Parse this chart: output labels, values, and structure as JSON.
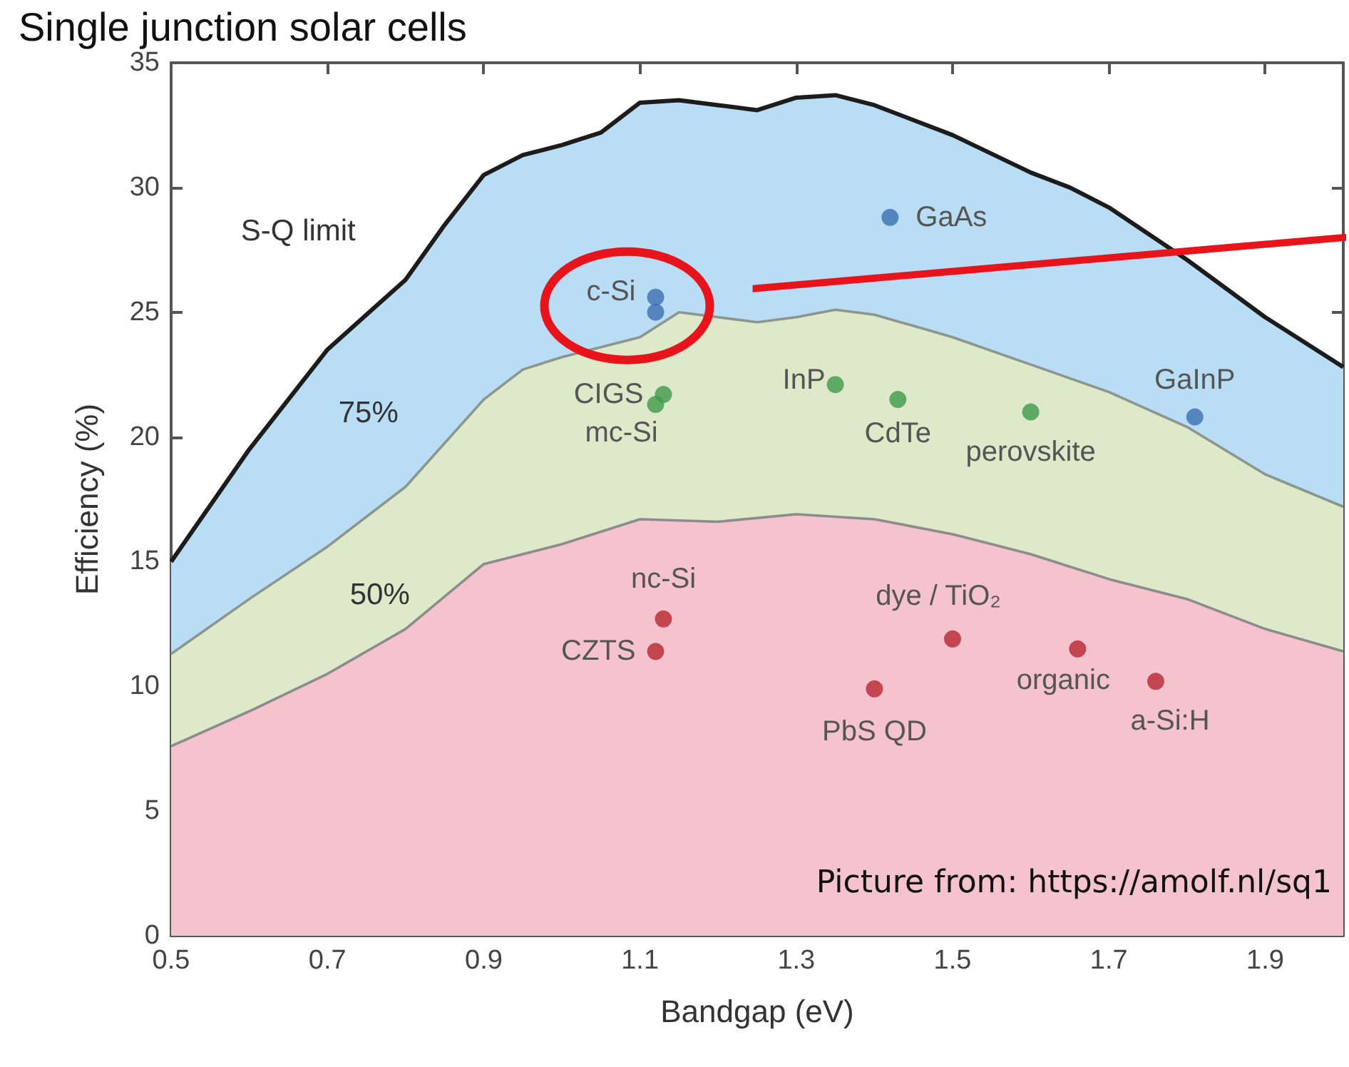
{
  "chart_data": {
    "type": "area",
    "title": "Single junction solar cells",
    "xlabel": "Bandgap (eV)",
    "ylabel": "Efficiency (%)",
    "xlim": [
      0.5,
      2.0
    ],
    "xticks": [
      0.5,
      0.7,
      0.9,
      1.1,
      1.3,
      1.5,
      1.7,
      1.9
    ],
    "ylim": [
      0,
      35
    ],
    "yticks": [
      0,
      5,
      10,
      15,
      20,
      25,
      30,
      35
    ],
    "grid": false,
    "series": [
      {
        "name": "S-Q limit",
        "type": "area",
        "color": "#b9ddf4",
        "x": [
          0.5,
          0.6,
          0.7,
          0.8,
          0.85,
          0.9,
          0.95,
          1.0,
          1.05,
          1.1,
          1.15,
          1.2,
          1.25,
          1.3,
          1.35,
          1.4,
          1.5,
          1.6,
          1.65,
          1.7,
          1.8,
          1.9,
          2.0
        ],
        "values": [
          15,
          19.5,
          23.5,
          26.3,
          28.5,
          30.5,
          31.3,
          31.7,
          32.2,
          33.4,
          33.5,
          33.3,
          33.1,
          33.6,
          33.7,
          33.3,
          32.1,
          30.6,
          30.0,
          29.2,
          27.1,
          24.8,
          22.8
        ]
      },
      {
        "name": "75%",
        "color": "#dde9c9",
        "x": [
          0.5,
          0.6,
          0.7,
          0.8,
          0.9,
          0.95,
          1.0,
          1.1,
          1.15,
          1.2,
          1.25,
          1.3,
          1.35,
          1.4,
          1.5,
          1.6,
          1.7,
          1.8,
          1.9,
          2.0
        ],
        "values": [
          11.3,
          13.5,
          15.6,
          18.0,
          21.5,
          22.7,
          23.2,
          24.0,
          25.0,
          24.8,
          24.6,
          24.8,
          25.1,
          24.9,
          24.0,
          22.9,
          21.8,
          20.4,
          18.5,
          17.2
        ]
      },
      {
        "name": "50%",
        "color": "#f4c3ce",
        "x": [
          0.5,
          0.6,
          0.7,
          0.8,
          0.9,
          1.0,
          1.1,
          1.2,
          1.3,
          1.4,
          1.5,
          1.6,
          1.7,
          1.8,
          1.9,
          2.0
        ],
        "values": [
          7.6,
          9.0,
          10.5,
          12.3,
          14.9,
          15.7,
          16.7,
          16.6,
          16.9,
          16.7,
          16.1,
          15.3,
          14.3,
          13.5,
          12.3,
          11.4
        ]
      },
      {
        "type": "scatter",
        "marker": "circle",
        "color": "#3b6fb2",
        "x": [
          1.42,
          1.12,
          1.12,
          1.81
        ],
        "values": [
          28.8,
          25.6,
          25.0,
          20.8
        ]
      },
      {
        "type": "scatter",
        "marker": "circle",
        "color": "#3e9a4b",
        "x": [
          1.13,
          1.12,
          1.35,
          1.43,
          1.6
        ],
        "values": [
          21.7,
          21.3,
          22.1,
          21.5,
          21.0
        ]
      },
      {
        "type": "scatter",
        "marker": "circle",
        "color": "#b5262f",
        "x": [
          1.13,
          1.12,
          1.4,
          1.5,
          1.66,
          1.76
        ],
        "values": [
          12.7,
          11.4,
          9.9,
          11.9,
          11.5,
          10.2
        ]
      }
    ],
    "annotations": [
      {
        "text": "GaAs",
        "x": 1.42,
        "y": 28.8
      },
      {
        "text": "c-Si",
        "x": 1.12,
        "y": 25.6
      },
      {
        "text": "CIGS",
        "x": 1.13,
        "y": 21.7
      },
      {
        "text": "mc-Si",
        "x": 1.12,
        "y": 21.3
      },
      {
        "text": "InP",
        "x": 1.35,
        "y": 22.1
      },
      {
        "text": "CdTe",
        "x": 1.43,
        "y": 21.5
      },
      {
        "text": "perovskite",
        "x": 1.6,
        "y": 21.0
      },
      {
        "text": "GaInP",
        "x": 1.81,
        "y": 20.8
      },
      {
        "text": "nc-Si",
        "x": 1.13,
        "y": 12.7
      },
      {
        "text": "CZTS",
        "x": 1.12,
        "y": 11.4
      },
      {
        "text": "PbS QD",
        "x": 1.4,
        "y": 9.9
      },
      {
        "text": "dye / TiO₂",
        "x": 1.5,
        "y": 11.9
      },
      {
        "text": "organic",
        "x": 1.66,
        "y": 11.5
      },
      {
        "text": "a-Si:H",
        "x": 1.76,
        "y": 10.2
      },
      "Picture from: https://amolf.nl/sq1"
    ]
  }
}
